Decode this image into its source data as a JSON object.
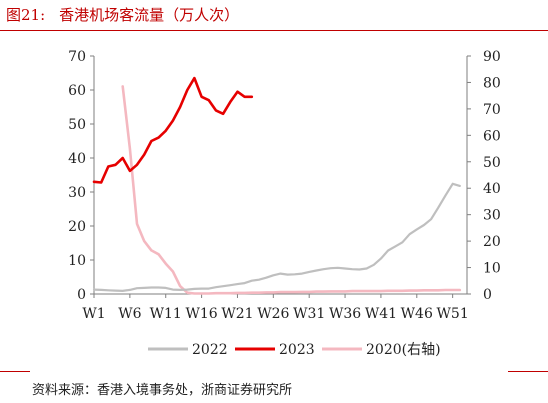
{
  "figure": {
    "number": "图21:",
    "title": "香港机场客流量（万人次）",
    "source": "资料来源：香港入境事务处，浙商证券研究所"
  },
  "colors": {
    "title": "#c00000",
    "series_2022": "#bfbfbf",
    "series_2023": "#e60000",
    "series_2020": "#f4b8c0",
    "axis": "#7f7f7f"
  },
  "chart_data": {
    "type": "line",
    "title": "香港机场客流量（万人次）",
    "xlabel": "",
    "ylabel": "",
    "x_tick_labels": [
      "W1",
      "W6",
      "W11",
      "W16",
      "W21",
      "W26",
      "W31",
      "W36",
      "W41",
      "W46",
      "W51"
    ],
    "x_tick_weeks": [
      1,
      6,
      11,
      16,
      21,
      26,
      31,
      36,
      41,
      46,
      51
    ],
    "xlim": [
      1,
      53
    ],
    "ylim_left": [
      0,
      70
    ],
    "yticks_left": [
      0,
      10,
      20,
      30,
      40,
      50,
      60,
      70
    ],
    "ylim_right": [
      0,
      90
    ],
    "yticks_right": [
      0,
      10,
      20,
      30,
      40,
      50,
      60,
      70,
      80,
      90
    ],
    "grid": false,
    "legend_position": "bottom",
    "series": [
      {
        "name": "2022",
        "axis": "left",
        "x": [
          1,
          2,
          3,
          4,
          5,
          6,
          7,
          8,
          9,
          10,
          11,
          12,
          13,
          14,
          15,
          16,
          17,
          18,
          19,
          20,
          21,
          22,
          23,
          24,
          25,
          26,
          27,
          28,
          29,
          30,
          31,
          32,
          33,
          34,
          35,
          36,
          37,
          38,
          39,
          40,
          41,
          42,
          43,
          44,
          45,
          46,
          47,
          48,
          49,
          50,
          51,
          52
        ],
        "y": [
          1.3,
          1.2,
          1.1,
          1.0,
          0.9,
          1.2,
          1.7,
          1.8,
          1.9,
          1.9,
          1.8,
          1.3,
          1.2,
          1.3,
          1.5,
          1.6,
          1.6,
          2.0,
          2.3,
          2.6,
          2.9,
          3.2,
          3.9,
          4.2,
          4.8,
          5.5,
          6.0,
          5.7,
          5.8,
          6.0,
          6.5,
          6.9,
          7.3,
          7.6,
          7.7,
          7.5,
          7.3,
          7.2,
          7.5,
          8.6,
          10.4,
          12.8,
          14.0,
          15.2,
          17.6,
          19.0,
          20.3,
          22.0,
          25.4,
          29.0,
          32.4,
          31.8
        ]
      },
      {
        "name": "2023",
        "axis": "left",
        "x": [
          1,
          2,
          3,
          4,
          5,
          6,
          7,
          8,
          9,
          10,
          11,
          12,
          13,
          14,
          15,
          16,
          17,
          18,
          19,
          20,
          21,
          22,
          23
        ],
        "y": [
          33.0,
          32.8,
          37.5,
          38.0,
          40.0,
          36.2,
          38.0,
          41.0,
          45.0,
          46.0,
          48.0,
          51.0,
          55.0,
          60.0,
          63.5,
          58.0,
          57.0,
          54.0,
          53.0,
          56.5,
          59.5,
          58.0,
          58.0
        ]
      },
      {
        "name": "2020(右轴)",
        "axis": "right",
        "x": [
          1,
          2,
          3,
          4,
          5,
          6,
          7,
          8,
          9,
          10,
          11,
          12,
          13,
          14,
          15,
          16,
          17,
          18,
          19,
          20,
          21,
          22,
          23,
          24,
          25,
          26,
          27,
          28,
          29,
          30,
          31,
          32,
          33,
          34,
          35,
          36,
          37,
          38,
          39,
          40,
          41,
          42,
          43,
          44,
          45,
          46,
          47,
          48,
          49,
          50,
          51,
          52
        ],
        "y": [
          null,
          null,
          null,
          null,
          78.5,
          55.0,
          26.5,
          20.0,
          16.5,
          15.0,
          11.5,
          8.5,
          3.0,
          0.5,
          0.2,
          0.2,
          0.2,
          0.3,
          0.3,
          0.3,
          0.4,
          0.4,
          0.5,
          0.5,
          0.6,
          0.6,
          0.7,
          0.7,
          0.7,
          0.8,
          0.8,
          0.9,
          0.9,
          1.0,
          1.0,
          1.0,
          1.1,
          1.1,
          1.1,
          1.1,
          1.1,
          1.2,
          1.2,
          1.2,
          1.3,
          1.3,
          1.4,
          1.4,
          1.4,
          1.5,
          1.5,
          1.5
        ]
      }
    ]
  }
}
